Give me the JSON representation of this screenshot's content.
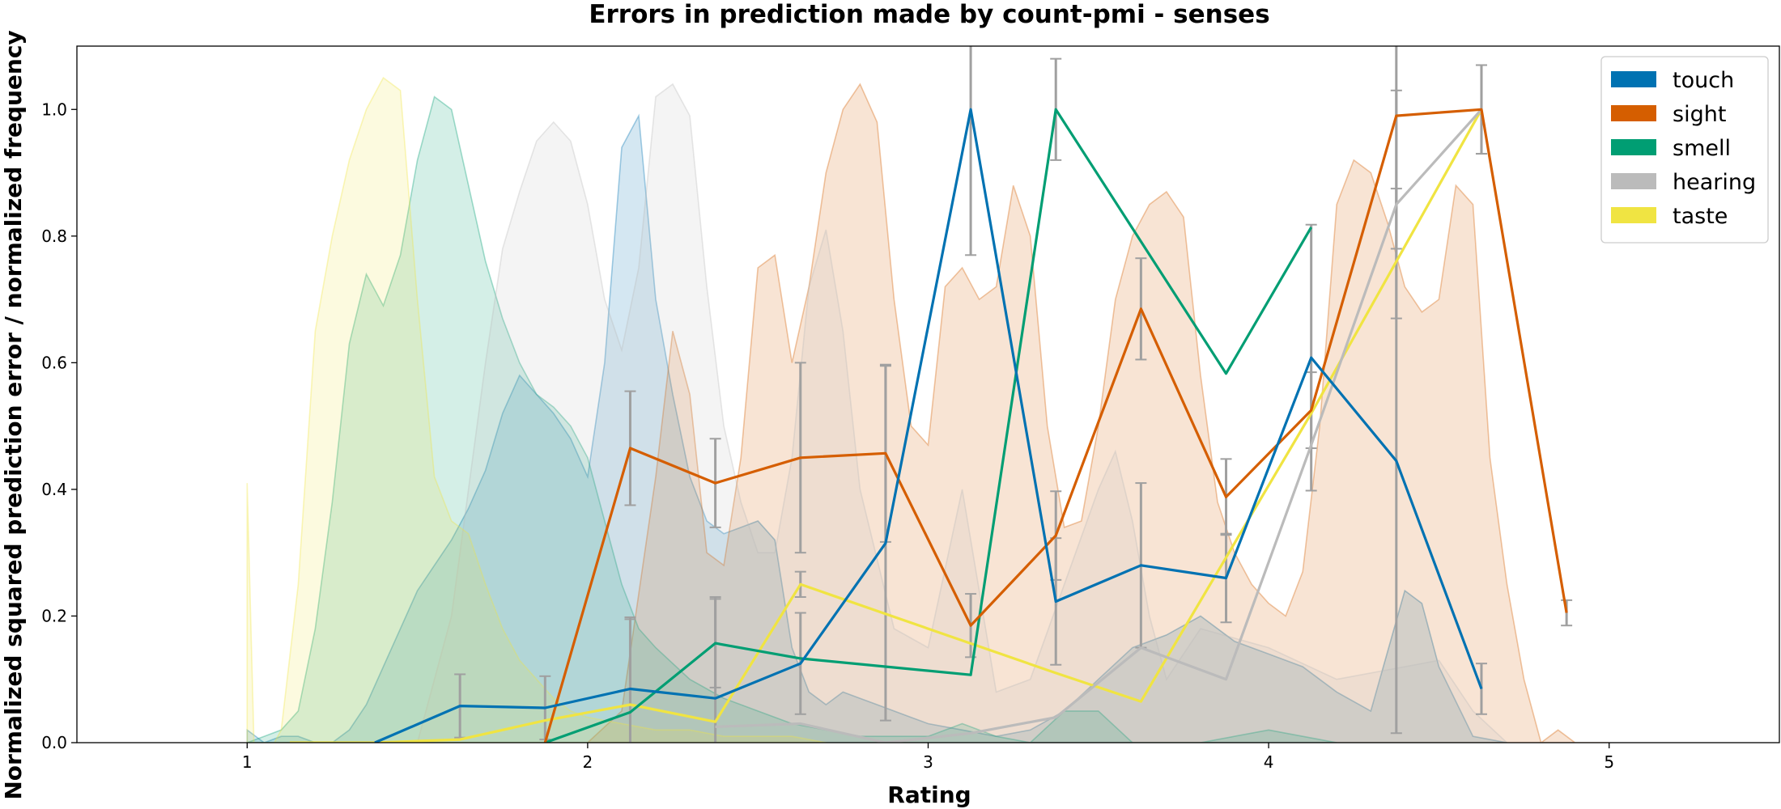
{
  "chart_data": {
    "type": "line",
    "title": "Errors in prediction made by count-pmi - senses",
    "xlabel": "Rating",
    "ylabel": "Normalized squared prediction error / normalized frequency",
    "xlim": [
      0.5,
      5.5
    ],
    "ylim": [
      0.0,
      1.1
    ],
    "x_ticks": [
      1,
      2,
      3,
      4,
      5
    ],
    "x_tick_labels": [
      "1",
      "2",
      "3",
      "4",
      "5"
    ],
    "y_ticks": [
      0.0,
      0.2,
      0.4,
      0.6,
      0.8,
      1.0
    ],
    "y_tick_labels": [
      "0.0",
      "0.2",
      "0.4",
      "0.6",
      "0.8",
      "1.0"
    ],
    "grid": false,
    "legend_position": "top-right",
    "series": [
      {
        "name": "touch",
        "color": "#0072b2",
        "x": [
          1.375,
          1.625,
          1.875,
          2.125,
          2.375,
          2.625,
          2.875,
          3.125,
          3.375,
          3.625,
          3.875,
          4.125,
          4.375,
          4.625
        ],
        "y": [
          0.0,
          0.058,
          0.055,
          0.085,
          0.07,
          0.125,
          0.315,
          1.0,
          0.223,
          0.28,
          0.26,
          0.608,
          0.445,
          0.085
        ],
        "err": [
          0.0,
          0.05,
          0.05,
          0.11,
          0.16,
          0.08,
          0.28,
          0.23,
          0.1,
          0.13,
          0.07,
          0.21,
          0.43,
          0.04
        ],
        "density_x": [
          1.0,
          1.05,
          1.1,
          1.15,
          1.2,
          1.25,
          1.3,
          1.35,
          1.4,
          1.45,
          1.5,
          1.55,
          1.6,
          1.65,
          1.7,
          1.75,
          1.8,
          1.85,
          1.9,
          1.95,
          2.0,
          2.05,
          2.1,
          2.15,
          2.2,
          2.25,
          2.3,
          2.35,
          2.4,
          2.45,
          2.5,
          2.55,
          2.6,
          2.65,
          2.7,
          2.75,
          2.8,
          2.85,
          2.9,
          2.95,
          3.0,
          3.1,
          3.2,
          3.3,
          3.4,
          3.5,
          3.6,
          3.7,
          3.8,
          3.9,
          4.0,
          4.1,
          4.2,
          4.3,
          4.4,
          4.45,
          4.5,
          4.6,
          4.7
        ],
        "density_y": [
          0.02,
          0.0,
          0.01,
          0.01,
          0.0,
          0.0,
          0.02,
          0.06,
          0.12,
          0.18,
          0.24,
          0.28,
          0.32,
          0.37,
          0.43,
          0.52,
          0.58,
          0.55,
          0.52,
          0.48,
          0.42,
          0.6,
          0.94,
          0.99,
          0.7,
          0.55,
          0.42,
          0.35,
          0.33,
          0.34,
          0.35,
          0.32,
          0.15,
          0.08,
          0.06,
          0.08,
          0.07,
          0.06,
          0.05,
          0.04,
          0.03,
          0.02,
          0.01,
          0.02,
          0.05,
          0.1,
          0.15,
          0.17,
          0.2,
          0.16,
          0.14,
          0.12,
          0.08,
          0.05,
          0.24,
          0.22,
          0.12,
          0.01,
          0.0
        ]
      },
      {
        "name": "sight",
        "color": "#d55e00",
        "x": [
          1.875,
          2.125,
          2.375,
          2.625,
          2.875,
          3.125,
          3.375,
          3.625,
          3.875,
          4.125,
          4.375,
          4.625,
          4.875
        ],
        "y": [
          0.0,
          0.465,
          0.41,
          0.45,
          0.457,
          0.185,
          0.327,
          0.685,
          0.388,
          0.525,
          0.99,
          1.0,
          0.205
        ],
        "err": [
          0.0,
          0.09,
          0.07,
          0.15,
          0.14,
          0.05,
          0.07,
          0.08,
          0.06,
          0.06,
          0.21,
          0.07,
          0.02
        ],
        "density_x": [
          2.0,
          2.1,
          2.2,
          2.25,
          2.3,
          2.35,
          2.4,
          2.45,
          2.5,
          2.55,
          2.6,
          2.65,
          2.7,
          2.75,
          2.8,
          2.85,
          2.9,
          2.95,
          3.0,
          3.05,
          3.1,
          3.15,
          3.2,
          3.25,
          3.3,
          3.35,
          3.4,
          3.45,
          3.5,
          3.55,
          3.6,
          3.65,
          3.7,
          3.75,
          3.8,
          3.85,
          3.9,
          3.95,
          4.0,
          4.05,
          4.1,
          4.15,
          4.2,
          4.25,
          4.3,
          4.35,
          4.4,
          4.45,
          4.5,
          4.55,
          4.6,
          4.65,
          4.7,
          4.75,
          4.8,
          4.85,
          4.9,
          5.0
        ],
        "density_y": [
          0.0,
          0.05,
          0.42,
          0.65,
          0.55,
          0.3,
          0.28,
          0.45,
          0.75,
          0.77,
          0.6,
          0.72,
          0.9,
          1.0,
          1.04,
          0.98,
          0.7,
          0.5,
          0.47,
          0.72,
          0.75,
          0.7,
          0.72,
          0.88,
          0.8,
          0.5,
          0.34,
          0.35,
          0.5,
          0.7,
          0.8,
          0.85,
          0.87,
          0.83,
          0.58,
          0.38,
          0.3,
          0.25,
          0.22,
          0.2,
          0.27,
          0.5,
          0.85,
          0.92,
          0.9,
          0.82,
          0.72,
          0.68,
          0.7,
          0.88,
          0.85,
          0.45,
          0.25,
          0.1,
          0.0,
          0.02,
          0.0,
          0.0
        ]
      },
      {
        "name": "smell",
        "color": "#009e73",
        "x": [
          1.875,
          2.125,
          2.375,
          2.625,
          3.125,
          3.375,
          3.875,
          4.125
        ],
        "y": [
          0.0,
          0.048,
          0.157,
          0.133,
          0.107,
          1.0,
          0.583,
          0.814
        ],
        "err": [
          0.0,
          0.15,
          0.07,
          0.0,
          0.0,
          0.08,
          0.0,
          0.0
        ],
        "density_x": [
          1.0,
          1.05,
          1.1,
          1.15,
          1.2,
          1.25,
          1.3,
          1.35,
          1.4,
          1.45,
          1.5,
          1.55,
          1.6,
          1.65,
          1.7,
          1.75,
          1.8,
          1.85,
          1.9,
          1.95,
          2.0,
          2.05,
          2.1,
          2.15,
          2.2,
          2.3,
          2.4,
          2.5,
          2.6,
          2.8,
          3.0,
          3.1,
          3.2,
          3.3,
          3.4,
          3.5,
          3.6,
          3.8,
          4.0,
          4.1,
          4.2
        ],
        "density_y": [
          0.0,
          0.01,
          0.02,
          0.05,
          0.18,
          0.38,
          0.63,
          0.74,
          0.69,
          0.77,
          0.92,
          1.02,
          1.0,
          0.88,
          0.76,
          0.67,
          0.6,
          0.55,
          0.53,
          0.5,
          0.45,
          0.35,
          0.25,
          0.18,
          0.15,
          0.1,
          0.07,
          0.05,
          0.03,
          0.01,
          0.01,
          0.03,
          0.01,
          0.0,
          0.05,
          0.05,
          0.0,
          0.0,
          0.02,
          0.01,
          0.0
        ]
      },
      {
        "name": "hearing",
        "color": "#bbbbbb",
        "x": [
          2.375,
          2.625,
          2.875,
          3.125,
          3.375,
          3.625,
          3.875,
          4.125,
          4.375,
          4.625
        ],
        "y": [
          0.025,
          0.03,
          0.0,
          0.015,
          0.04,
          0.15,
          0.1,
          0.47,
          0.85,
          1.0
        ],
        "err": [
          0.0,
          0.0,
          0.0,
          0.0,
          0.0,
          0.0,
          0.0,
          0.0,
          0.18,
          0.07
        ],
        "density_x": [
          1.5,
          1.6,
          1.7,
          1.75,
          1.8,
          1.85,
          1.9,
          1.95,
          2.0,
          2.05,
          2.1,
          2.15,
          2.2,
          2.25,
          2.3,
          2.35,
          2.4,
          2.45,
          2.5,
          2.55,
          2.6,
          2.65,
          2.7,
          2.75,
          2.8,
          2.9,
          3.0,
          3.1,
          3.2,
          3.3,
          3.4,
          3.5,
          3.55,
          3.6,
          3.65,
          3.7,
          3.8,
          4.0,
          4.2,
          4.4,
          4.5,
          4.6,
          4.7
        ],
        "density_y": [
          0.0,
          0.2,
          0.6,
          0.78,
          0.87,
          0.95,
          0.98,
          0.95,
          0.85,
          0.7,
          0.62,
          0.75,
          1.02,
          1.04,
          0.99,
          0.72,
          0.5,
          0.38,
          0.3,
          0.3,
          0.45,
          0.72,
          0.81,
          0.65,
          0.4,
          0.18,
          0.15,
          0.4,
          0.08,
          0.1,
          0.25,
          0.4,
          0.46,
          0.35,
          0.2,
          0.1,
          0.18,
          0.15,
          0.1,
          0.12,
          0.13,
          0.05,
          0.0
        ]
      },
      {
        "name": "taste",
        "color": "#f0e442",
        "x": [
          1.125,
          1.375,
          1.625,
          1.875,
          2.125,
          2.375,
          2.625,
          3.375,
          3.625,
          4.125,
          4.625
        ],
        "y": [
          0.0,
          0.0,
          0.005,
          0.035,
          0.06,
          0.033,
          0.25,
          0.11,
          0.065,
          0.52,
          1.0
        ],
        "err": [
          0.0,
          0.0,
          0.0,
          0.0,
          0.0,
          0.0,
          0.02,
          0.0,
          0.0,
          0.0,
          0.0
        ],
        "density_x": [
          1.0,
          1.02,
          1.05,
          1.08,
          1.1,
          1.15,
          1.2,
          1.25,
          1.3,
          1.35,
          1.4,
          1.45,
          1.5,
          1.55,
          1.6,
          1.65,
          1.7,
          1.75,
          1.8,
          1.85,
          1.9,
          1.95,
          2.0,
          2.1,
          2.2,
          2.3,
          2.4,
          2.5,
          2.6,
          2.7
        ],
        "density_y": [
          0.41,
          0.0,
          0.0,
          0.0,
          0.02,
          0.25,
          0.65,
          0.8,
          0.92,
          1.0,
          1.05,
          1.03,
          0.7,
          0.42,
          0.35,
          0.33,
          0.25,
          0.18,
          0.13,
          0.1,
          0.07,
          0.05,
          0.04,
          0.03,
          0.02,
          0.02,
          0.01,
          0.01,
          0.01,
          0.0
        ]
      }
    ]
  }
}
